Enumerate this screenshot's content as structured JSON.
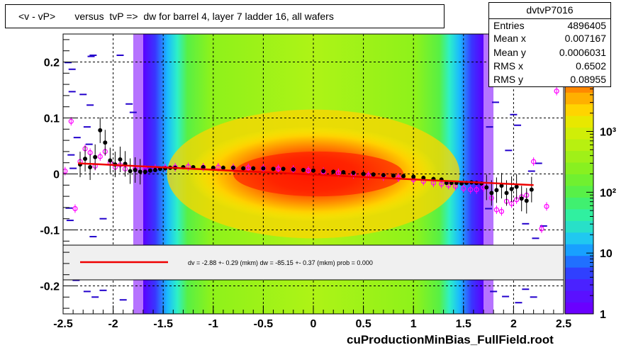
{
  "title": "<v - vP>       versus  tvP =>  dw for barrel 4, layer 7 ladder 16, all wafers",
  "stats": {
    "name": "dvtvP7016",
    "rows": [
      {
        "label": "Entries",
        "value": "4896405"
      },
      {
        "label": "Mean x",
        "value": "0.007167"
      },
      {
        "label": "Mean y",
        "value": "0.0006031"
      },
      {
        "label": "RMS x",
        "value": "0.6502"
      },
      {
        "label": "RMS y",
        "value": "0.08955"
      }
    ]
  },
  "fit_text": "dv =   -2.88 +-  0.29 (mkm) dw =  -85.15 +-  0.37 (mkm) prob = 0.000",
  "footer": "cuProductionMinBias_FullField.root",
  "colors": {
    "fit_line": "#ee0000",
    "profile_black": "#000000",
    "profile_magenta": "#ff00ff"
  },
  "chart_data": {
    "type": "heatmap",
    "xlim": [
      -2.5,
      2.5
    ],
    "ylim": [
      -0.25,
      0.25
    ],
    "x_ticks": [
      -2.5,
      -2,
      -1.5,
      -1,
      -0.5,
      0,
      0.5,
      1,
      1.5,
      2,
      2.5
    ],
    "x_tick_labels": [
      "-2.5",
      "-2",
      "-1.5",
      "-1",
      "-0.5",
      "0",
      "0.5",
      "1",
      "1.5",
      "2",
      "2.5"
    ],
    "y_ticks": [
      -0.2,
      -0.1,
      0,
      0.1,
      0.2
    ],
    "y_tick_labels": [
      "-0.2",
      "-0.1",
      "0",
      "0.1",
      "0.2"
    ],
    "grid": true,
    "color_scale": {
      "type": "log",
      "range": [
        1,
        40000
      ],
      "tick_labels": [
        "1",
        "10",
        "10²",
        "10³"
      ],
      "tick_values": [
        1,
        10,
        100,
        1000
      ]
    },
    "band_x": [
      -1.7,
      1.7
    ],
    "profile_black": [
      [
        -2.33,
        0.017
      ],
      [
        -2.28,
        0.027
      ],
      [
        -2.23,
        0.012
      ],
      [
        -2.18,
        0.03
      ],
      [
        -2.13,
        0.078
      ],
      [
        -2.08,
        0.056
      ],
      [
        -2.03,
        0.024
      ],
      [
        -1.98,
        0.017
      ],
      [
        -1.93,
        0.026
      ],
      [
        -1.88,
        0.018
      ],
      [
        -1.83,
        0.005
      ],
      [
        -1.78,
        0.007
      ],
      [
        -1.73,
        0.004
      ],
      [
        -1.68,
        0.004
      ],
      [
        -1.63,
        0.006
      ],
      [
        -1.58,
        0.007
      ],
      [
        -1.53,
        0.009
      ],
      [
        -1.48,
        0.01
      ],
      [
        -1.43,
        0.011
      ],
      [
        -1.38,
        0.011
      ],
      [
        -1.3,
        0.012
      ],
      [
        -1.2,
        0.012
      ],
      [
        -1.1,
        0.012
      ],
      [
        -1.0,
        0.011
      ],
      [
        -0.9,
        0.011
      ],
      [
        -0.8,
        0.011
      ],
      [
        -0.7,
        0.01
      ],
      [
        -0.6,
        0.01
      ],
      [
        -0.5,
        0.01
      ],
      [
        -0.4,
        0.009
      ],
      [
        -0.3,
        0.009
      ],
      [
        -0.2,
        0.008
      ],
      [
        -0.1,
        0.007
      ],
      [
        0.0,
        0.006
      ],
      [
        0.1,
        0.005
      ],
      [
        0.2,
        0.004
      ],
      [
        0.3,
        0.003
      ],
      [
        0.4,
        0.002
      ],
      [
        0.5,
        0.0
      ],
      [
        0.6,
        -0.001
      ],
      [
        0.7,
        -0.002
      ],
      [
        0.8,
        -0.003
      ],
      [
        0.9,
        -0.004
      ],
      [
        1.0,
        -0.005
      ],
      [
        1.1,
        -0.007
      ],
      [
        1.2,
        -0.009
      ],
      [
        1.28,
        -0.01
      ],
      [
        1.33,
        -0.016
      ],
      [
        1.38,
        -0.016
      ],
      [
        1.43,
        -0.016
      ],
      [
        1.48,
        -0.017
      ],
      [
        1.53,
        -0.016
      ],
      [
        1.58,
        -0.015
      ],
      [
        1.63,
        -0.016
      ],
      [
        1.68,
        -0.017
      ],
      [
        1.73,
        -0.024
      ],
      [
        1.78,
        -0.034
      ],
      [
        1.83,
        -0.029
      ],
      [
        1.88,
        -0.021
      ],
      [
        1.93,
        -0.034
      ],
      [
        1.98,
        -0.027
      ],
      [
        2.03,
        -0.023
      ],
      [
        2.08,
        -0.044
      ],
      [
        2.13,
        -0.048
      ],
      [
        2.18,
        -0.028
      ]
    ],
    "profile_magenta": [
      [
        -2.48,
        0.005
      ],
      [
        -2.42,
        0.094
      ],
      [
        -2.38,
        -0.062
      ],
      [
        -2.33,
        0.022
      ],
      [
        -2.28,
        0.045
      ],
      [
        -2.23,
        0.038
      ],
      [
        -2.18,
        0.014
      ],
      [
        -2.13,
        0.031
      ],
      [
        -2.08,
        0.04
      ],
      [
        -2.03,
        0.02
      ],
      [
        -1.98,
        0.012
      ],
      [
        -1.93,
        0.016
      ],
      [
        -1.88,
        0.009
      ],
      [
        -1.78,
        0.009
      ],
      [
        -1.68,
        0.008
      ],
      [
        -1.58,
        0.01
      ],
      [
        -1.48,
        0.011
      ],
      [
        -1.38,
        0.012
      ],
      [
        -1.25,
        0.013
      ],
      [
        -1.1,
        0.012
      ],
      [
        -0.95,
        0.012
      ],
      [
        -0.8,
        0.011
      ],
      [
        -0.65,
        0.011
      ],
      [
        -0.5,
        0.01
      ],
      [
        -0.35,
        0.009
      ],
      [
        -0.2,
        0.008
      ],
      [
        -0.05,
        0.006
      ],
      [
        0.1,
        0.004
      ],
      [
        0.25,
        0.002
      ],
      [
        0.4,
        -0.001
      ],
      [
        0.55,
        -0.003
      ],
      [
        0.7,
        -0.005
      ],
      [
        0.85,
        -0.007
      ],
      [
        1.0,
        -0.01
      ],
      [
        1.1,
        -0.013
      ],
      [
        1.2,
        -0.016
      ],
      [
        1.28,
        -0.018
      ],
      [
        1.35,
        -0.02
      ],
      [
        1.42,
        -0.022
      ],
      [
        1.5,
        -0.026
      ],
      [
        1.57,
        -0.028
      ],
      [
        1.63,
        -0.028
      ],
      [
        1.7,
        -0.024
      ],
      [
        1.78,
        -0.043
      ],
      [
        1.83,
        -0.064
      ],
      [
        1.88,
        -0.067
      ],
      [
        1.93,
        -0.049
      ],
      [
        1.98,
        -0.053
      ],
      [
        2.03,
        -0.046
      ],
      [
        2.08,
        -0.041
      ],
      [
        2.13,
        -0.038
      ],
      [
        2.2,
        0.022
      ],
      [
        2.28,
        -0.098
      ],
      [
        2.33,
        -0.058
      ],
      [
        2.43,
        0.148
      ]
    ],
    "fit_line": {
      "x": [
        -2.35,
        2.2
      ],
      "y": [
        0.019,
        -0.02
      ]
    },
    "outliers": [
      [
        -2.2,
        0.212
      ],
      [
        -2.22,
        0.21
      ],
      [
        -1.93,
        0.212
      ],
      [
        -2.23,
        0.123
      ],
      [
        -1.84,
        0.125
      ],
      [
        -2.26,
        0.084
      ],
      [
        -1.8,
        0.11
      ],
      [
        -2.41,
        0.147
      ],
      [
        -2.45,
        0.199
      ],
      [
        -2.3,
        0.142
      ],
      [
        -2.42,
        0.034
      ],
      [
        -2.4,
        0.01
      ],
      [
        -2.44,
        -0.061
      ],
      [
        -2.43,
        -0.083
      ],
      [
        -2.1,
        -0.08
      ],
      [
        -2.2,
        -0.112
      ],
      [
        -2.18,
        -0.22
      ],
      [
        -2.1,
        -0.208
      ],
      [
        -2.26,
        -0.21
      ],
      [
        -2.37,
        -0.19
      ],
      [
        -1.9,
        -0.225
      ],
      [
        -2.24,
        0.053
      ],
      [
        -2.41,
        0.187
      ],
      [
        -2.36,
        0.065
      ],
      [
        1.82,
        0.128
      ],
      [
        2.0,
        0.106
      ],
      [
        2.04,
        0.087
      ],
      [
        1.95,
        0.042
      ],
      [
        2.18,
        0.005
      ],
      [
        2.25,
        0.019
      ],
      [
        1.75,
        -0.062
      ],
      [
        2.12,
        -0.089
      ],
      [
        2.3,
        -0.093
      ],
      [
        1.88,
        -0.174
      ],
      [
        1.8,
        -0.21
      ],
      [
        2.2,
        -0.22
      ],
      [
        2.12,
        -0.206
      ],
      [
        1.92,
        -0.219
      ],
      [
        2.05,
        -0.23
      ],
      [
        1.76,
        0.084
      ],
      [
        2.22,
        -0.115
      ],
      [
        1.98,
        -0.159
      ]
    ]
  }
}
